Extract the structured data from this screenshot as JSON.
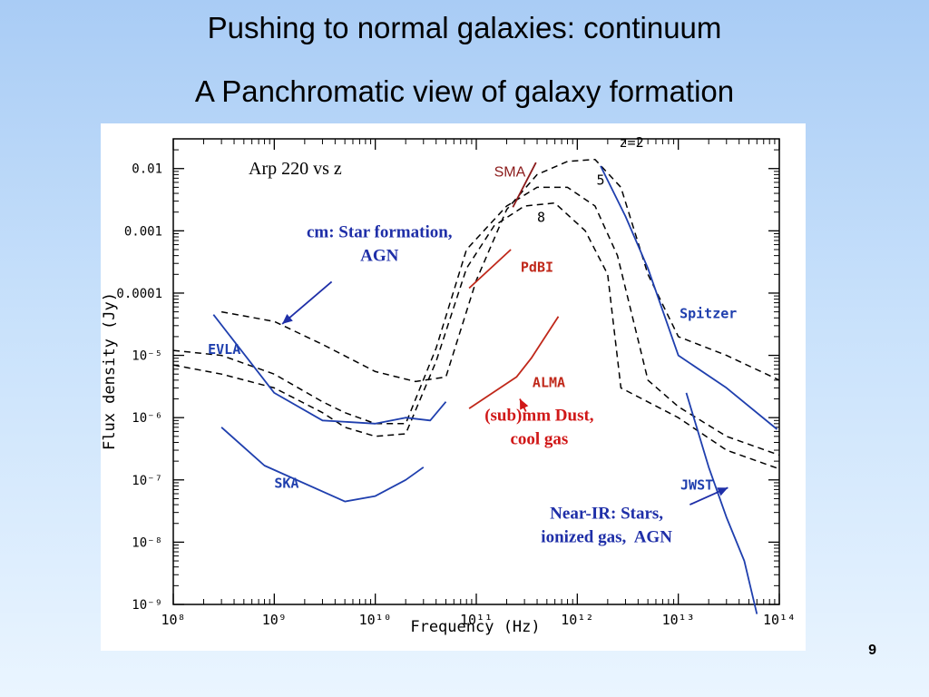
{
  "slide": {
    "title": "Pushing to normal galaxies: continuum",
    "subtitle": "A Panchromatic view of galaxy formation",
    "page_number": "9"
  },
  "chart_data": {
    "type": "line",
    "title": "Arp 220 vs z",
    "xlabel": "Frequency (Hz)",
    "ylabel": "Flux density (Jy)",
    "xscale": "log",
    "yscale": "log",
    "xlim": [
      100000000.0,
      100000000000000.0
    ],
    "ylim": [
      1e-09,
      0.03
    ],
    "x_ticks": [
      {
        "value": 100000000.0,
        "label": "10⁸"
      },
      {
        "value": 1000000000.0,
        "label": "10⁹"
      },
      {
        "value": 10000000000.0,
        "label": "10¹⁰"
      },
      {
        "value": 100000000000.0,
        "label": "10¹¹"
      },
      {
        "value": 1000000000000.0,
        "label": "10¹²"
      },
      {
        "value": 10000000000000.0,
        "label": "10¹³"
      },
      {
        "value": 100000000000000.0,
        "label": "10¹⁴"
      }
    ],
    "y_ticks": [
      {
        "value": 1e-09,
        "label": "10⁻⁹"
      },
      {
        "value": 1e-08,
        "label": "10⁻⁸"
      },
      {
        "value": 1e-07,
        "label": "10⁻⁷"
      },
      {
        "value": 1e-06,
        "label": "10⁻⁶"
      },
      {
        "value": 1e-05,
        "label": "10⁻⁵"
      },
      {
        "value": 0.0001,
        "label": "0.0001"
      },
      {
        "value": 0.001,
        "label": "0.001"
      },
      {
        "value": 0.01,
        "label": "0.01"
      }
    ],
    "series": [
      {
        "name": "z=2",
        "style": "dashed",
        "color": "#000000",
        "x": [
          300000000.0,
          1000000000.0,
          3000000000.0,
          10000000000.0,
          25000000000.0,
          50000000000.0,
          100000000000.0,
          200000000000.0,
          400000000000.0,
          800000000000.0,
          1500000000000.0,
          2700000000000.0,
          5000000000000.0,
          10000000000000.0,
          30000000000000.0,
          100000000000000.0
        ],
        "y": [
          5e-05,
          3.5e-05,
          1.5e-05,
          5.5e-06,
          3.8e-06,
          4.5e-06,
          0.00016,
          0.0022,
          0.008,
          0.013,
          0.014,
          0.005,
          0.0002,
          2e-05,
          1e-05,
          4e-06
        ]
      },
      {
        "name": "5",
        "style": "dashed",
        "color": "#000000",
        "x": [
          100000000.0,
          300000000.0,
          1000000000.0,
          3000000000.0,
          5000000000.0,
          10000000000.0,
          20000000000.0,
          40000000000.0,
          80000000000.0,
          200000000000.0,
          400000000000.0,
          800000000000.0,
          1500000000000.0,
          2500000000000.0,
          5000000000000.0,
          10000000000000.0,
          30000000000000.0,
          100000000000000.0
        ],
        "y": [
          1.2e-05,
          1e-05,
          5e-06,
          1.8e-06,
          1.2e-06,
          8e-07,
          8e-07,
          1.3e-05,
          0.0005,
          0.0025,
          0.005,
          0.005,
          0.0025,
          0.0004,
          4e-06,
          1.5e-06,
          5e-07,
          2.5e-07
        ]
      },
      {
        "name": "8",
        "style": "dashed",
        "color": "#000000",
        "x": [
          100000000.0,
          300000000.0,
          1000000000.0,
          3000000000.0,
          5000000000.0,
          10000000000.0,
          20000000000.0,
          40000000000.0,
          80000000000.0,
          150000000000.0,
          300000000000.0,
          600000000000.0,
          1200000000000.0,
          2000000000000.0,
          2700000000000.0,
          10000000000000.0,
          30000000000000.0,
          100000000000000.0
        ],
        "y": [
          7e-06,
          5e-06,
          3e-06,
          1.2e-06,
          7e-07,
          5e-07,
          5.5e-07,
          8e-06,
          0.00025,
          0.0012,
          0.0025,
          0.0028,
          0.001,
          0.0002,
          3e-06,
          1e-06,
          3e-07,
          1.5e-07
        ]
      },
      {
        "name": "EVLA",
        "style": "solid",
        "color": "#1f3fae",
        "x": [
          250000000.0,
          1000000000.0,
          3000000000.0,
          10000000000.0,
          20000000000.0,
          35000000000.0,
          50000000000.0
        ],
        "y": [
          4.5e-05,
          2.5e-06,
          9e-07,
          8e-07,
          1e-06,
          9e-07,
          1.8e-06
        ]
      },
      {
        "name": "SKA",
        "style": "solid",
        "color": "#1f3fae",
        "x": [
          300000000.0,
          800000000.0,
          5000000000.0,
          10000000000.0,
          20000000000.0,
          30000000000.0
        ],
        "y": [
          7e-07,
          1.7e-07,
          4.5e-08,
          5.5e-08,
          1e-07,
          1.6e-07
        ]
      },
      {
        "name": "SMA",
        "style": "solid",
        "color": "#8b1a1a",
        "x": [
          230000000000.0,
          390000000000.0
        ],
        "y": [
          0.0024,
          0.0125
        ]
      },
      {
        "name": "PdBI",
        "style": "solid",
        "color": "#c0281a",
        "x": [
          85000000000.0,
          220000000000.0
        ],
        "y": [
          0.00012,
          0.0005
        ]
      },
      {
        "name": "ALMA",
        "style": "solid",
        "color": "#c0281a",
        "x": [
          85000000000.0,
          250000000000.0,
          350000000000.0,
          650000000000.0
        ],
        "y": [
          1.4e-06,
          4.5e-06,
          9e-06,
          4.2e-05
        ]
      },
      {
        "name": "Spitzer",
        "style": "solid",
        "color": "#1f3fae",
        "x": [
          1700000000000.0,
          3000000000000.0,
          5000000000000.0,
          10000000000000.0,
          30000000000000.0,
          95000000000000.0
        ],
        "y": [
          0.011,
          0.0017,
          0.00025,
          1e-05,
          3e-06,
          6.5e-07
        ]
      },
      {
        "name": "JWST",
        "style": "solid",
        "color": "#1f3fae",
        "x": [
          12000000000000.0,
          20000000000000.0,
          30000000000000.0,
          45000000000000.0,
          60000000000000.0
        ],
        "y": [
          2.5e-06,
          1.6e-07,
          2.5e-08,
          5e-09,
          7e-10
        ]
      }
    ],
    "series_labels": [
      {
        "text": "z=2",
        "x": 2600000000000.0,
        "y": 0.022
      },
      {
        "text": "5",
        "x": 1550000000000.0,
        "y": 0.0055
      },
      {
        "text": "8",
        "x": 400000000000.0,
        "y": 0.0014
      },
      {
        "text": "SMA",
        "x": 150000000000.0,
        "y": 0.0075
      },
      {
        "text": "PdBI",
        "x": 275000000000.0,
        "y": 0.00022
      },
      {
        "text": "EVLA",
        "x": 220000000.0,
        "y": 1.05e-05
      },
      {
        "text": "SKA",
        "x": 1000000000.0,
        "y": 7.5e-08
      },
      {
        "text": "ALMA",
        "x": 360000000000.0,
        "y": 3.1e-06
      },
      {
        "text": "Spitzer",
        "x": 10300000000000.0,
        "y": 4e-05
      },
      {
        "text": "JWST",
        "x": 10500000000000.0,
        "y": 7e-08
      }
    ],
    "annotations": [
      {
        "lines": [
          "cm: Star formation,",
          "AGN"
        ],
        "color": "#1f2fa8",
        "x": 11000000000.0,
        "y": 0.00078,
        "align": "middle"
      },
      {
        "lines": [
          "(sub)mm Dust,",
          "cool gas"
        ],
        "color": "#d01818",
        "x": 420000000000.0,
        "y": 9e-07,
        "align": "middle"
      },
      {
        "lines": [
          "Near-IR: Stars,",
          "ionized gas,  AGN"
        ],
        "color": "#1f2fa8",
        "x": 1950000000000.0,
        "y": 2.4e-08,
        "align": "middle"
      }
    ],
    "arrows": [
      {
        "color": "#1f2fa8",
        "from": [
          3700000000.0,
          0.000152
        ],
        "to": [
          1200000000.0,
          3.2e-05
        ]
      },
      {
        "color": "#d01818",
        "from": [
          310000000000.0,
          1.25e-06
        ],
        "to": [
          270000000000.0,
          2e-06
        ]
      },
      {
        "color": "#1f2fa8",
        "from": [
          13000000000000.0,
          4e-08
        ],
        "to": [
          31000000000000.0,
          7.5e-08
        ]
      }
    ]
  }
}
